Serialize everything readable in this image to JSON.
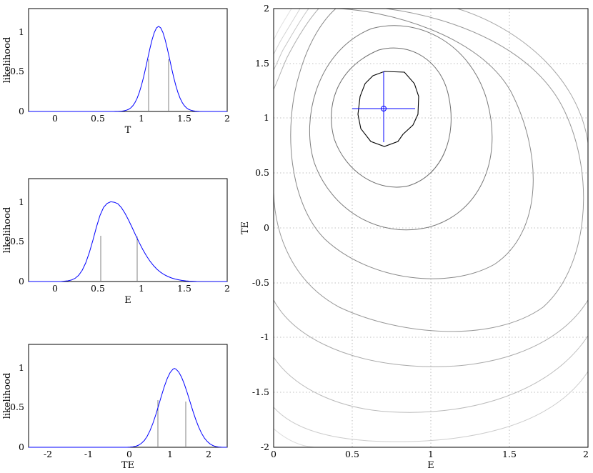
{
  "chart_data": [
    {
      "type": "line",
      "xlabel": "T",
      "ylabel": "likelihood",
      "xlim": [
        -0.25,
        2
      ],
      "ylim": [
        0,
        1.3
      ],
      "xticks": [
        "0",
        "0.5",
        "1",
        "1.5",
        "2"
      ],
      "yticks": [
        "0",
        "0.5",
        "1"
      ],
      "series": [
        {
          "values": {
            "mean": 1.2,
            "sd": 0.12
          }
        }
      ],
      "interval": [
        1.09,
        1.32
      ],
      "grid": false,
      "color": "#0000ff"
    },
    {
      "type": "line",
      "xlabel": "E",
      "ylabel": "likelihood",
      "xlim": [
        -0.25,
        2
      ],
      "ylim": [
        0,
        1.3
      ],
      "xticks": [
        "0",
        "0.5",
        "1",
        "1.5",
        "2"
      ],
      "yticks": [
        "0",
        "0.5",
        "1"
      ],
      "series": [
        {
          "values": {
            "mean": 0.73,
            "sd_left": 0.2,
            "sd_right": 0.25
          }
        }
      ],
      "interval": [
        0.52,
        0.95
      ],
      "grid": false,
      "color": "#0000ff"
    },
    {
      "type": "line",
      "xlabel": "TE",
      "ylabel": "likelihood",
      "xlim": [
        -2.4,
        2.5
      ],
      "ylim": [
        0,
        1.3
      ],
      "xticks": [
        "-2",
        "-1",
        "0",
        "1",
        "2"
      ],
      "yticks": [
        "0",
        "0.5",
        "1"
      ],
      "series": [
        {
          "values": {
            "mean": 1.08,
            "sd_left": 0.35,
            "sd_right": 0.33
          }
        }
      ],
      "interval": [
        0.72,
        1.42
      ],
      "grid": false,
      "color": "#0000ff"
    },
    {
      "type": "contour",
      "xlabel": "E",
      "ylabel": "TE",
      "xlim": [
        0,
        2
      ],
      "ylim": [
        -2,
        2
      ],
      "xticks": [
        "0",
        "0.5",
        "1",
        "1.5",
        "2"
      ],
      "yticks": [
        "-2",
        "-1.5",
        "-1",
        "-0.5",
        "0",
        "0.5",
        "1",
        "1.5",
        "2"
      ],
      "grid": true,
      "center": [
        0.7,
        1.09
      ],
      "crosshair": {
        "x": [
          0.5,
          0.9
        ],
        "y": [
          0.73,
          1.42
        ]
      },
      "inner_contour_color": "#000000",
      "marker_color": "#0000ff"
    }
  ]
}
